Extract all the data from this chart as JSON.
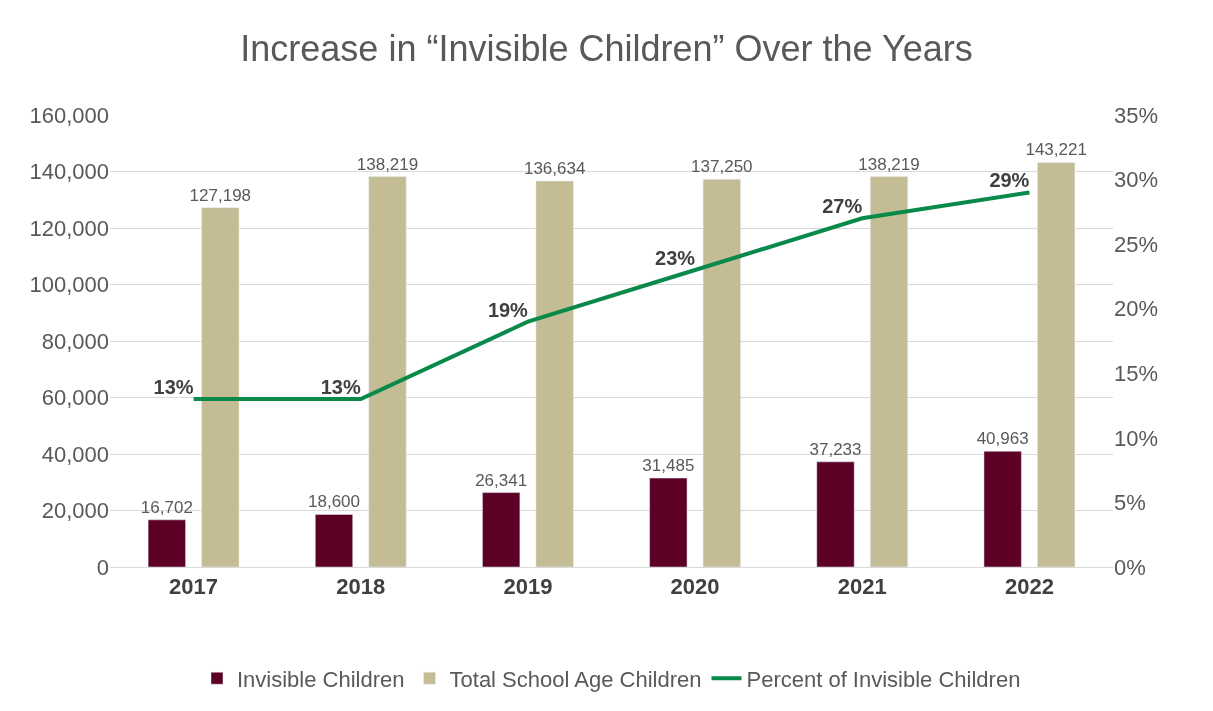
{
  "chart_data": {
    "type": "bar",
    "title": "Increase in “Invisible Children” Over the Years",
    "categories": [
      "2017",
      "2018",
      "2019",
      "2020",
      "2021",
      "2022"
    ],
    "series": [
      {
        "name": "Invisible Children",
        "color": "#5c0026",
        "values": [
          16702,
          18600,
          26341,
          31485,
          37233,
          40963
        ],
        "value_labels": [
          "16,702",
          "18,600",
          "26,341",
          "31,485",
          "37,233",
          "40,963"
        ]
      },
      {
        "name": "Total School Age Children",
        "color": "#c4bc94",
        "values": [
          127198,
          138219,
          136634,
          137250,
          138219,
          143221
        ],
        "value_labels": [
          "127,198",
          "138,219",
          "136,634",
          "137,250",
          "138,219",
          "143,221"
        ]
      },
      {
        "name": "Percent of Invisible Children",
        "type": "line",
        "axis": "y2",
        "color": "#0a8a4a",
        "values": [
          13,
          13,
          19,
          23,
          27,
          29
        ],
        "value_labels": [
          "13%",
          "13%",
          "19%",
          "23%",
          "27%",
          "29%"
        ]
      }
    ],
    "ylim": [
      0,
      160000
    ],
    "yticks": [
      {
        "value": 0,
        "label": "0"
      },
      {
        "value": 20000,
        "label": "20,000"
      },
      {
        "value": 40000,
        "label": "40,000"
      },
      {
        "value": 60000,
        "label": "60,000"
      },
      {
        "value": 80000,
        "label": "80,000"
      },
      {
        "value": 100000,
        "label": "100,000"
      },
      {
        "value": 120000,
        "label": "120,000"
      },
      {
        "value": 140000,
        "label": "140,000"
      },
      {
        "value": 160000,
        "label": "160,000"
      }
    ],
    "y2lim": [
      0,
      35
    ],
    "y2ticks": [
      {
        "value": 0,
        "label": "0%"
      },
      {
        "value": 5,
        "label": "5%"
      },
      {
        "value": 10,
        "label": "10%"
      },
      {
        "value": 15,
        "label": "15%"
      },
      {
        "value": 20,
        "label": "20%"
      },
      {
        "value": 25,
        "label": "25%"
      },
      {
        "value": 30,
        "label": "30%"
      },
      {
        "value": 35,
        "label": "35%"
      }
    ],
    "grid": "y",
    "legend": "bottom",
    "marker": "none",
    "line_style": "solid"
  }
}
